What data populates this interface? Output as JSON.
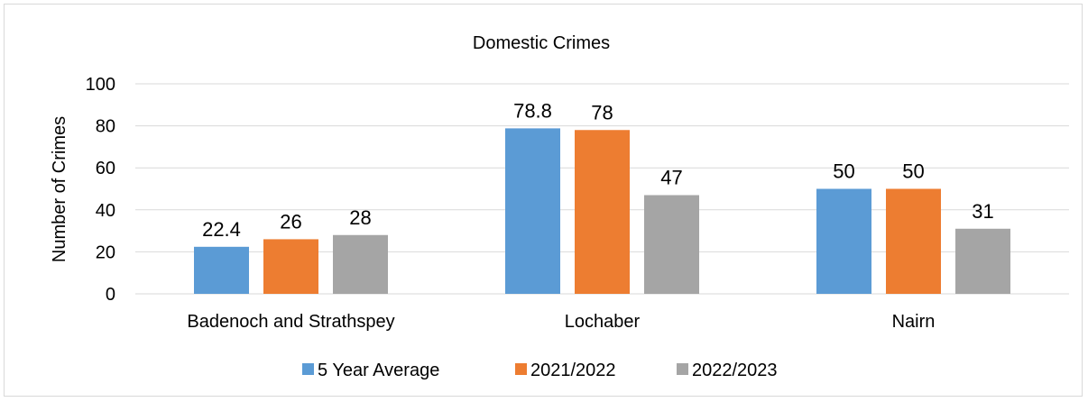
{
  "chart_data": {
    "type": "bar",
    "title": "Domestic Crimes",
    "ylabel": "Number of Crimes",
    "xlabel": "",
    "ylim": [
      0,
      100
    ],
    "yticks": [
      "0",
      "20",
      "40",
      "60",
      "80",
      "100"
    ],
    "categories": [
      "Badenoch and Strathspey",
      "Lochaber",
      "Nairn"
    ],
    "series": [
      {
        "name": "5 Year Average",
        "color": "#5b9bd5",
        "values": [
          22.4,
          78.8,
          50
        ],
        "labels": [
          "22.4",
          "78.8",
          "50"
        ]
      },
      {
        "name": "2021/2022",
        "color": "#ed7d31",
        "values": [
          26,
          78,
          50
        ],
        "labels": [
          "26",
          "78",
          "50"
        ]
      },
      {
        "name": "2022/2023",
        "color": "#a5a5a5",
        "values": [
          28,
          47,
          31
        ],
        "labels": [
          "28",
          "47",
          "31"
        ]
      }
    ],
    "grid": true,
    "legend_position": "bottom"
  }
}
